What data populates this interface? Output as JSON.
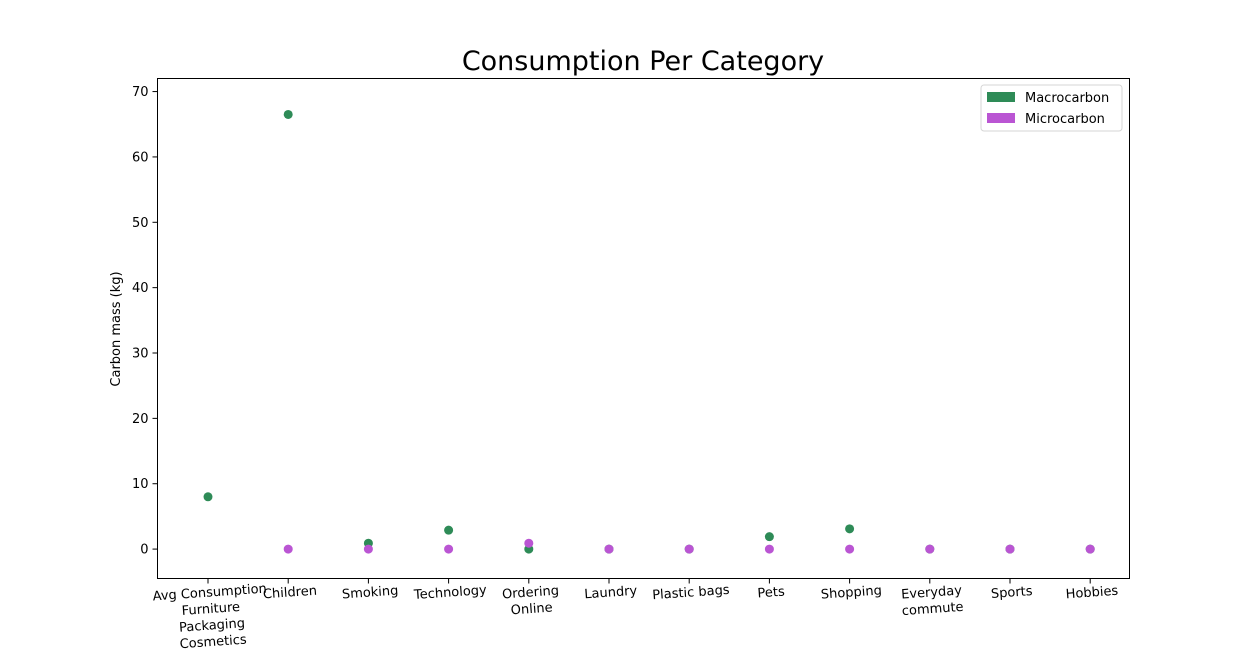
{
  "chart_data": {
    "type": "scatter",
    "title": "Consumption Per Category",
    "xlabel": "",
    "ylabel": "Carbon mass (kg)",
    "ylim": [
      -4.5,
      72
    ],
    "yticks": [
      0,
      10,
      20,
      30,
      40,
      50,
      60,
      70
    ],
    "categories": [
      "Avg Consumption\nFurniture\nPackaging\nCosmetics",
      "Children",
      "Smoking",
      "Technology",
      "Ordering\nOnline",
      "Laundry",
      "Plastic bags",
      "Pets",
      "Shopping",
      "Everyday\ncommute",
      "Sports",
      "Hobbies"
    ],
    "series": [
      {
        "name": "Macrocarbon",
        "color": "#2e8b57",
        "values": [
          8.0,
          66.5,
          0.9,
          2.9,
          0.0,
          0.0,
          0.0,
          1.9,
          3.1,
          0.0,
          0.0,
          0.0
        ]
      },
      {
        "name": "Microcarbon",
        "color": "#ba55d3",
        "values": [
          null,
          0.0,
          0.0,
          0.0,
          0.9,
          0.0,
          0.0,
          0.0,
          0.0,
          0.0,
          0.0,
          0.0
        ]
      }
    ],
    "legend": "top-right",
    "grid": false
  }
}
